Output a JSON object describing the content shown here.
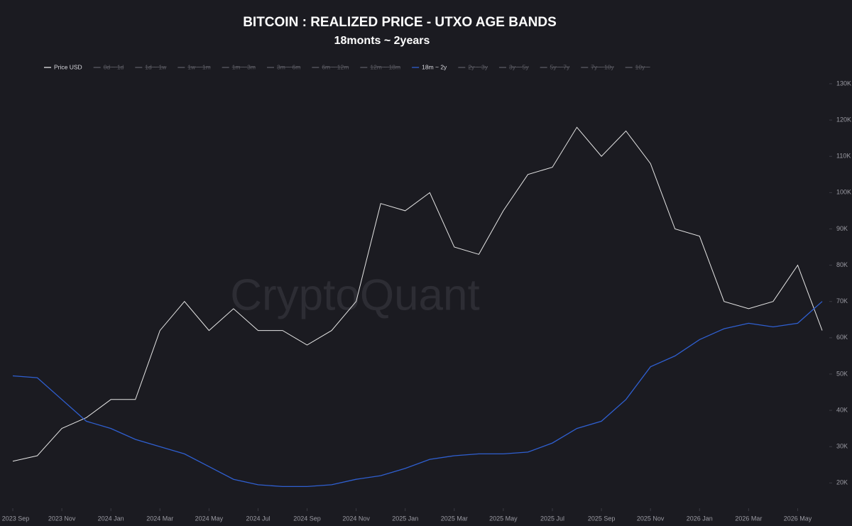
{
  "chart_data": {
    "type": "line",
    "title": "BITCOIN : REALIZED PRICE  -  UTXO AGE BANDS",
    "subtitle": "18monts ~ 2years",
    "watermark": "CryptoQuant",
    "x": [
      "2023-09",
      "2023-10",
      "2023-11",
      "2023-12",
      "2024-01",
      "2024-02",
      "2024-03",
      "2024-04",
      "2024-05",
      "2024-06",
      "2024-07",
      "2024-08",
      "2024-09",
      "2024-10",
      "2024-11",
      "2024-12",
      "2025-01",
      "2025-02",
      "2025-03",
      "2025-04",
      "2025-05",
      "2025-06",
      "2025-07",
      "2025-08",
      "2025-09",
      "2025-10",
      "2025-11",
      "2025-12",
      "2026-01",
      "2026-02",
      "2026-03",
      "2026-04",
      "2026-05",
      "2026-06"
    ],
    "xlim": [
      "2023-09",
      "2026-06"
    ],
    "xticks": [
      {
        "value": "2023-09",
        "label": "2023 Sep"
      },
      {
        "value": "2023-11",
        "label": "2023 Nov"
      },
      {
        "value": "2024-01",
        "label": "2024 Jan"
      },
      {
        "value": "2024-03",
        "label": "2024 Mar"
      },
      {
        "value": "2024-05",
        "label": "2024 May"
      },
      {
        "value": "2024-07",
        "label": "2024 Jul"
      },
      {
        "value": "2024-09",
        "label": "2024 Sep"
      },
      {
        "value": "2024-11",
        "label": "2024 Nov"
      },
      {
        "value": "2025-01",
        "label": "2025 Jan"
      },
      {
        "value": "2025-03",
        "label": "2025 Mar"
      },
      {
        "value": "2025-05",
        "label": "2025 May"
      },
      {
        "value": "2025-07",
        "label": "2025 Jul"
      },
      {
        "value": "2025-09",
        "label": "2025 Sep"
      },
      {
        "value": "2025-11",
        "label": "2025 Nov"
      },
      {
        "value": "2026-01",
        "label": "2026 Jan"
      },
      {
        "value": "2026-03",
        "label": "2026 Mar"
      },
      {
        "value": "2026-05",
        "label": "2026 May"
      }
    ],
    "ylim": [
      14000,
      130000
    ],
    "yticks": [
      {
        "value": 20000,
        "label": "20K"
      },
      {
        "value": 30000,
        "label": "30K"
      },
      {
        "value": 40000,
        "label": "40K"
      },
      {
        "value": 50000,
        "label": "50K"
      },
      {
        "value": 60000,
        "label": "60K"
      },
      {
        "value": 70000,
        "label": "70K"
      },
      {
        "value": 80000,
        "label": "80K"
      },
      {
        "value": 90000,
        "label": "90K"
      },
      {
        "value": 100000,
        "label": "100K"
      },
      {
        "value": 110000,
        "label": "110K"
      },
      {
        "value": 120000,
        "label": "120K"
      },
      {
        "value": 130000,
        "label": "130K"
      }
    ],
    "grid": false,
    "series": [
      {
        "name": "Price USD",
        "color": "#e6e6e6",
        "visible": true,
        "values": [
          26000,
          27500,
          35000,
          38000,
          43000,
          43000,
          62000,
          70000,
          62000,
          68000,
          62000,
          62000,
          58000,
          62000,
          70000,
          97000,
          95000,
          100000,
          85000,
          83000,
          95000,
          105000,
          107000,
          118000,
          110000,
          117000,
          108000,
          90000,
          88000,
          70000,
          68000,
          70000,
          80000,
          62000
        ]
      },
      {
        "name": "0d ~ 1d",
        "color": "#5c5c64",
        "visible": false
      },
      {
        "name": "1d ~ 1w",
        "color": "#5c5c64",
        "visible": false
      },
      {
        "name": "1w ~ 1m",
        "color": "#5c5c64",
        "visible": false
      },
      {
        "name": "1m ~ 3m",
        "color": "#5c5c64",
        "visible": false
      },
      {
        "name": "3m ~ 6m",
        "color": "#5c5c64",
        "visible": false
      },
      {
        "name": "6m ~ 12m",
        "color": "#5c5c64",
        "visible": false
      },
      {
        "name": "12m ~ 18m",
        "color": "#5c5c64",
        "visible": false
      },
      {
        "name": "18m ~ 2y",
        "color": "#2f5fd0",
        "visible": true,
        "values": [
          49500,
          49000,
          43000,
          37000,
          35000,
          32000,
          30000,
          28000,
          24500,
          21000,
          19500,
          19000,
          19000,
          19500,
          21000,
          22000,
          24000,
          26500,
          27500,
          28000,
          28000,
          28500,
          31000,
          35000,
          37000,
          43000,
          52000,
          55000,
          59500,
          62500,
          64000,
          63000,
          64000,
          70000
        ]
      },
      {
        "name": "2y ~ 3y",
        "color": "#5c5c64",
        "visible": false
      },
      {
        "name": "3y ~ 5y",
        "color": "#5c5c64",
        "visible": false
      },
      {
        "name": "5y ~ 7y",
        "color": "#5c5c64",
        "visible": false
      },
      {
        "name": "7y ~ 10y",
        "color": "#5c5c64",
        "visible": false
      },
      {
        "name": "10y ~",
        "color": "#5c5c64",
        "visible": false
      }
    ]
  }
}
